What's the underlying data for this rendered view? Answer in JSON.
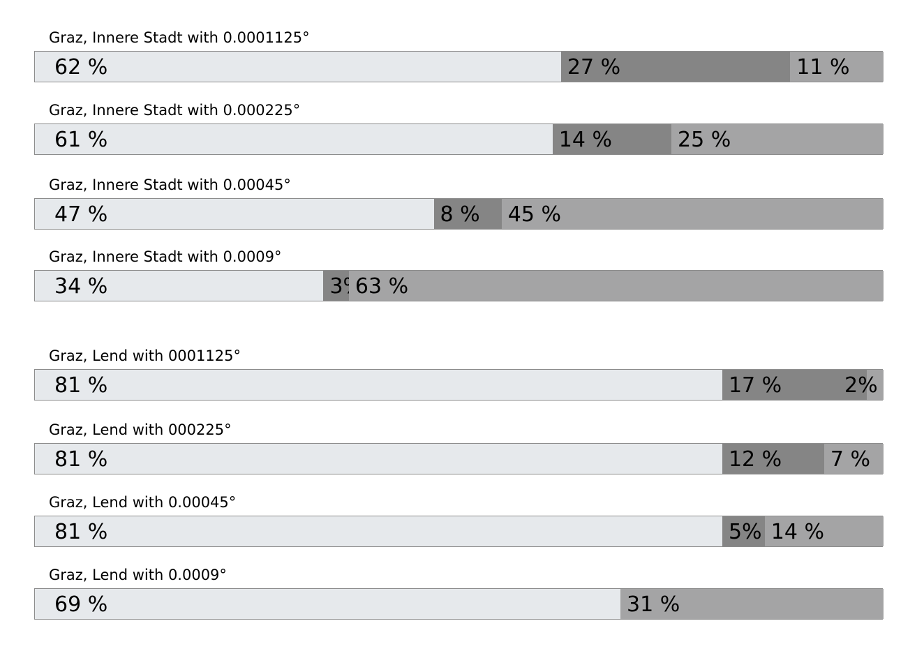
{
  "colors": {
    "segment_1": "#e6e9ec",
    "segment_2": "#858585",
    "segment_3": "#a4a4a5",
    "border": "#8c8c8c"
  },
  "chart_data": {
    "type": "bar",
    "orientation": "horizontal-stacked-100",
    "categories": [
      "Graz, Innere Stadt with 0.0001125°",
      "Graz, Innere Stadt with 0.000225°",
      "Graz, Innere Stadt with 0.00045°",
      "Graz, Innere Stadt with 0.0009°",
      "Graz, Lend with 0001125°",
      "Graz, Lend with 000225°",
      "Graz, Lend with 0.00045°",
      "Graz, Lend with 0.0009°"
    ],
    "rows": [
      {
        "segments": [
          {
            "value": 62,
            "label": "62 %"
          },
          {
            "value": 27,
            "label": "27 %"
          },
          {
            "value": 11,
            "label": "11 %"
          }
        ]
      },
      {
        "segments": [
          {
            "value": 61,
            "label": "61 %"
          },
          {
            "value": 14,
            "label": "14 %"
          },
          {
            "value": 25,
            "label": "25 %"
          }
        ]
      },
      {
        "segments": [
          {
            "value": 47,
            "label": "47 %"
          },
          {
            "value": 8,
            "label": "8 %"
          },
          {
            "value": 45,
            "label": "45 %"
          }
        ]
      },
      {
        "segments": [
          {
            "value": 34,
            "label": "34 %"
          },
          {
            "value": 3,
            "label": "3%"
          },
          {
            "value": 63,
            "label": "63 %"
          }
        ]
      },
      {
        "segments": [
          {
            "value": 81,
            "label": "81 %"
          },
          {
            "value": 17,
            "label": "17 %"
          },
          {
            "value": 2,
            "label": "2%"
          }
        ]
      },
      {
        "segments": [
          {
            "value": 81,
            "label": "81 %"
          },
          {
            "value": 12,
            "label": "12 %"
          },
          {
            "value": 7,
            "label": "7 %"
          }
        ]
      },
      {
        "segments": [
          {
            "value": 81,
            "label": "81 %"
          },
          {
            "value": 5,
            "label": "5%"
          },
          {
            "value": 14,
            "label": "14 %"
          }
        ]
      },
      {
        "segments": [
          {
            "value": 69,
            "label": "69 %"
          },
          {
            "value": 0,
            "label": ""
          },
          {
            "value": 31,
            "label": "31 %"
          }
        ]
      }
    ],
    "xlim": [
      0,
      100
    ],
    "grid": false,
    "legend": "none"
  }
}
